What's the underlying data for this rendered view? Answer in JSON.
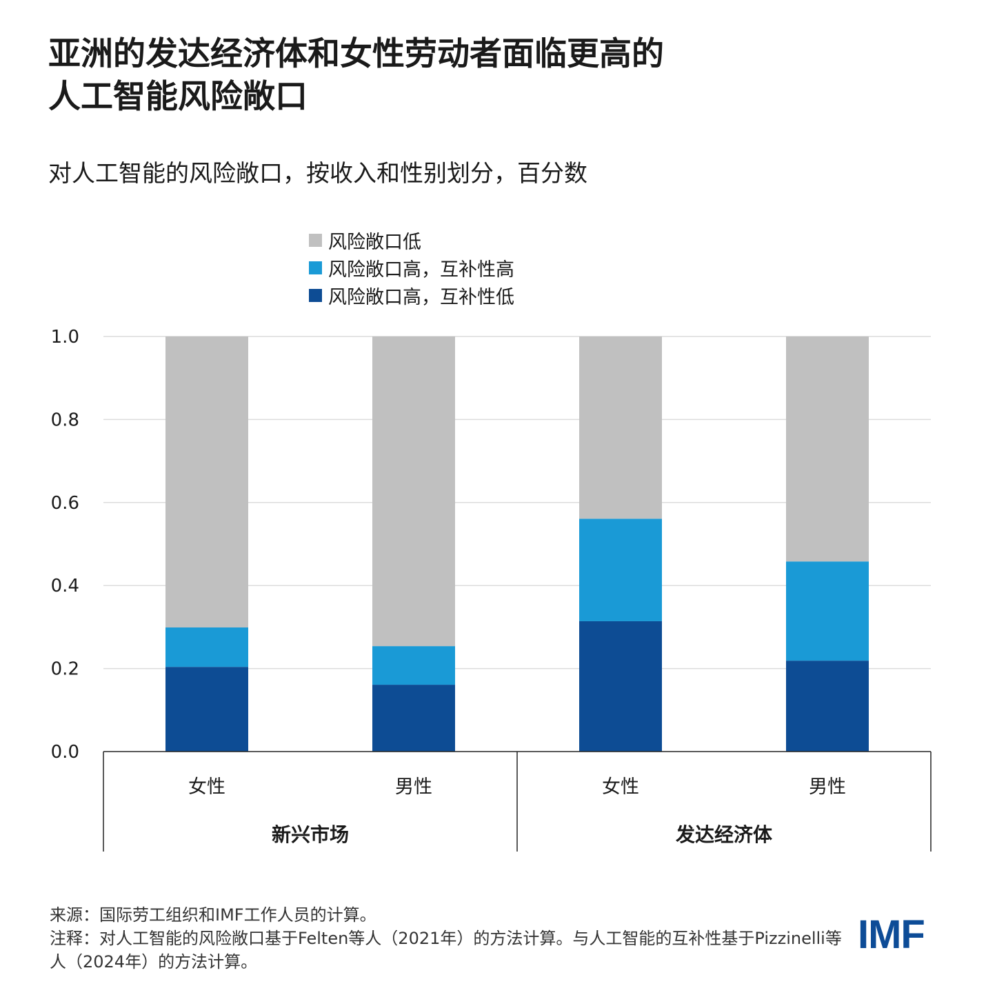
{
  "title_lines": [
    "亚洲的发达经济体和女性劳动者面临更高的",
    "人工智能风险敞口"
  ],
  "subtitle": "对人工智能的风险敞口，按收入和性别划分，百分数",
  "chart_data": {
    "type": "bar",
    "stacked": true,
    "categories": [
      "女性",
      "男性",
      "女性",
      "男性"
    ],
    "groups": [
      {
        "label": "新兴市场",
        "categories": [
          0,
          1
        ]
      },
      {
        "label": "发达经济体",
        "categories": [
          2,
          3
        ]
      }
    ],
    "series": [
      {
        "name": "风险敞口高，互补性低",
        "color": "#0d4c94",
        "values": [
          0.204,
          0.161,
          0.314,
          0.219
        ]
      },
      {
        "name": "风险敞口高，互补性高",
        "color": "#1a9ad6",
        "values": [
          0.095,
          0.093,
          0.247,
          0.239
        ]
      },
      {
        "name": "风险敞口低",
        "color": "#c0c0c0",
        "values": [
          0.701,
          0.746,
          0.439,
          0.542
        ]
      }
    ],
    "legend_order": [
      2,
      1,
      0
    ],
    "legend_position": "top-left",
    "ylim": [
      0,
      1.0
    ],
    "yticks": [
      "0.0",
      "0.2",
      "0.4",
      "0.6",
      "0.8",
      "1.0"
    ],
    "grid": true,
    "xlabel": "",
    "ylabel": ""
  },
  "notes": {
    "source": "来源：国际劳工组织和IMF工作人员的计算。",
    "note": "注释：对人工智能的风险敞口基于Felten等人（2021年）的方法计算。与人工智能的互补性基于Pizzinelli等人（2024年）的方法计算。"
  },
  "logo": "IMF"
}
